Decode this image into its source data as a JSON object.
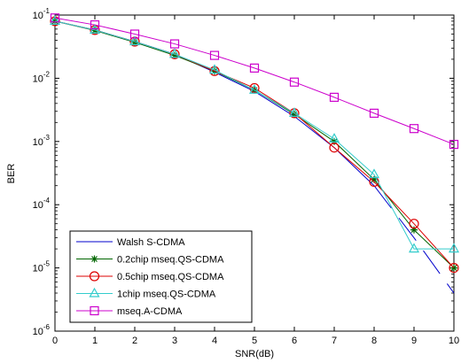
{
  "chart_data": {
    "type": "line",
    "title": "",
    "xlabel": "SNR(dB)",
    "ylabel": "BER",
    "xlim": [
      0,
      10
    ],
    "ylim": [
      1e-06,
      0.1
    ],
    "yscale": "log",
    "x_ticks": [
      "0",
      "1",
      "2",
      "3",
      "4",
      "5",
      "6",
      "7",
      "8",
      "9",
      "10"
    ],
    "y_ticks": [
      {
        "base": "10",
        "exp": "-1"
      },
      {
        "base": "10",
        "exp": "-2"
      },
      {
        "base": "10",
        "exp": "-3"
      },
      {
        "base": "10",
        "exp": "-4"
      },
      {
        "base": "10",
        "exp": "-5"
      },
      {
        "base": "10",
        "exp": "-6"
      }
    ],
    "grid": false,
    "legend_position": "bottom-left",
    "series": [
      {
        "name": "Walsh S-CDMA",
        "color": "#0000cc",
        "marker": "none",
        "dashed_tail": true,
        "x": [
          0,
          1,
          2,
          3,
          4,
          5,
          6,
          7,
          8,
          9,
          10
        ],
        "values": [
          0.08,
          0.058,
          0.038,
          0.024,
          0.0125,
          0.0062,
          0.0025,
          0.0008,
          0.0002,
          3e-05,
          4e-06
        ]
      },
      {
        "name": "0.2chip mseq.QS-CDMA",
        "color": "#006600",
        "marker": "star",
        "x": [
          0,
          1,
          2,
          3,
          4,
          5,
          6,
          7,
          8,
          9,
          10
        ],
        "values": [
          0.08,
          0.057,
          0.037,
          0.023,
          0.013,
          0.0065,
          0.0027,
          0.001,
          0.00025,
          4e-05,
          1e-05
        ]
      },
      {
        "name": "0.5chip mseq.QS-CDMA",
        "color": "#dd0000",
        "marker": "circle",
        "x": [
          0,
          1,
          2,
          3,
          4,
          5,
          6,
          7,
          8,
          9,
          10
        ],
        "values": [
          0.08,
          0.058,
          0.038,
          0.024,
          0.013,
          0.007,
          0.0028,
          0.0008,
          0.00023,
          5e-05,
          1e-05
        ]
      },
      {
        "name": "1chip mseq.QS-CDMA",
        "color": "#33cccc",
        "marker": "triangle",
        "x": [
          0,
          1,
          2,
          3,
          4,
          5,
          6,
          7,
          8,
          9,
          10
        ],
        "values": [
          0.08,
          0.058,
          0.038,
          0.024,
          0.0135,
          0.0065,
          0.0028,
          0.0011,
          0.0003,
          2e-05,
          2e-05
        ]
      },
      {
        "name": "mseq.A-CDMA",
        "color": "#cc00cc",
        "marker": "square",
        "x": [
          0,
          1,
          2,
          3,
          4,
          5,
          6,
          7,
          8,
          9,
          10
        ],
        "values": [
          0.09,
          0.07,
          0.05,
          0.035,
          0.023,
          0.0145,
          0.0087,
          0.005,
          0.0028,
          0.0016,
          0.0009
        ]
      }
    ]
  }
}
